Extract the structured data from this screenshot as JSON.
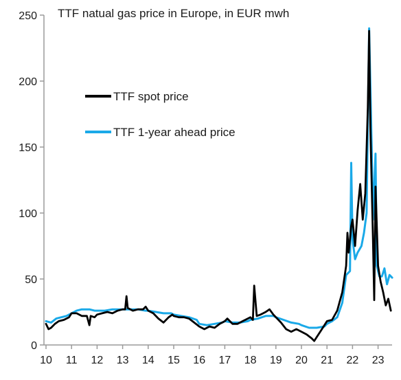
{
  "chart_data": {
    "type": "line",
    "title": "TTF natual gas price in Europe, in EUR mwh",
    "xlabel": "",
    "ylabel": "",
    "xlim": [
      2010,
      2023.8
    ],
    "ylim": [
      0,
      250
    ],
    "x_ticks": [
      "10",
      "11",
      "12",
      "13",
      "14",
      "15",
      "16",
      "17",
      "18",
      "19",
      "20",
      "21",
      "22",
      "23"
    ],
    "y_ticks": [
      "0",
      "50",
      "100",
      "150",
      "200",
      "250"
    ],
    "grid": false,
    "legend_position": "upper-left",
    "series": [
      {
        "name": "TTF spot price",
        "color": "#000000",
        "points": [
          [
            2010.0,
            16
          ],
          [
            2010.1,
            12
          ],
          [
            2010.2,
            13
          ],
          [
            2010.35,
            16
          ],
          [
            2010.5,
            18
          ],
          [
            2010.7,
            19
          ],
          [
            2010.9,
            21
          ],
          [
            2011.0,
            24
          ],
          [
            2011.2,
            24
          ],
          [
            2011.4,
            22
          ],
          [
            2011.6,
            22
          ],
          [
            2011.7,
            15
          ],
          [
            2011.75,
            22
          ],
          [
            2011.9,
            21
          ],
          [
            2012.0,
            23
          ],
          [
            2012.2,
            24
          ],
          [
            2012.4,
            25
          ],
          [
            2012.6,
            24
          ],
          [
            2012.8,
            26
          ],
          [
            2013.0,
            27
          ],
          [
            2013.1,
            27
          ],
          [
            2013.15,
            37
          ],
          [
            2013.2,
            28
          ],
          [
            2013.4,
            26
          ],
          [
            2013.6,
            27
          ],
          [
            2013.8,
            27
          ],
          [
            2013.9,
            29
          ],
          [
            2014.0,
            26
          ],
          [
            2014.2,
            24
          ],
          [
            2014.4,
            20
          ],
          [
            2014.6,
            17
          ],
          [
            2014.8,
            21
          ],
          [
            2014.95,
            23
          ],
          [
            2015.0,
            22
          ],
          [
            2015.2,
            21
          ],
          [
            2015.4,
            21
          ],
          [
            2015.6,
            20
          ],
          [
            2015.8,
            17
          ],
          [
            2016.0,
            14
          ],
          [
            2016.2,
            12
          ],
          [
            2016.4,
            14
          ],
          [
            2016.6,
            13
          ],
          [
            2016.8,
            16
          ],
          [
            2017.0,
            18
          ],
          [
            2017.1,
            20
          ],
          [
            2017.3,
            16
          ],
          [
            2017.5,
            16
          ],
          [
            2017.7,
            18
          ],
          [
            2017.9,
            20
          ],
          [
            2018.0,
            21
          ],
          [
            2018.1,
            19
          ],
          [
            2018.15,
            45
          ],
          [
            2018.25,
            22
          ],
          [
            2018.4,
            23
          ],
          [
            2018.6,
            25
          ],
          [
            2018.75,
            27
          ],
          [
            2018.9,
            23
          ],
          [
            2019.0,
            21
          ],
          [
            2019.2,
            17
          ],
          [
            2019.4,
            12
          ],
          [
            2019.6,
            10
          ],
          [
            2019.8,
            12
          ],
          [
            2020.0,
            10
          ],
          [
            2020.2,
            8
          ],
          [
            2020.4,
            5
          ],
          [
            2020.5,
            3
          ],
          [
            2020.6,
            6
          ],
          [
            2020.8,
            12
          ],
          [
            2021.0,
            18
          ],
          [
            2021.2,
            19
          ],
          [
            2021.4,
            26
          ],
          [
            2021.6,
            40
          ],
          [
            2021.75,
            60
          ],
          [
            2021.8,
            85
          ],
          [
            2021.85,
            70
          ],
          [
            2021.95,
            90
          ],
          [
            2022.0,
            95
          ],
          [
            2022.1,
            75
          ],
          [
            2022.2,
            102
          ],
          [
            2022.3,
            122
          ],
          [
            2022.4,
            95
          ],
          [
            2022.5,
            115
          ],
          [
            2022.6,
            180
          ],
          [
            2022.65,
            238
          ],
          [
            2022.7,
            165
          ],
          [
            2022.8,
            80
          ],
          [
            2022.85,
            34
          ],
          [
            2022.9,
            120
          ],
          [
            2023.0,
            60
          ],
          [
            2023.1,
            48
          ],
          [
            2023.2,
            40
          ],
          [
            2023.3,
            30
          ],
          [
            2023.4,
            35
          ],
          [
            2023.5,
            26
          ]
        ]
      },
      {
        "name": "TTF 1-year ahead price",
        "color": "#1aa9e8",
        "points": [
          [
            2010.0,
            18
          ],
          [
            2010.2,
            17
          ],
          [
            2010.4,
            20
          ],
          [
            2010.6,
            21
          ],
          [
            2010.8,
            22
          ],
          [
            2011.0,
            24
          ],
          [
            2011.2,
            26
          ],
          [
            2011.4,
            27
          ],
          [
            2011.7,
            27
          ],
          [
            2011.9,
            26
          ],
          [
            2012.0,
            26
          ],
          [
            2012.3,
            26
          ],
          [
            2012.6,
            27
          ],
          [
            2012.9,
            27
          ],
          [
            2013.0,
            27
          ],
          [
            2013.3,
            27
          ],
          [
            2013.6,
            27
          ],
          [
            2013.9,
            26
          ],
          [
            2014.0,
            26
          ],
          [
            2014.3,
            25
          ],
          [
            2014.6,
            24
          ],
          [
            2014.9,
            24
          ],
          [
            2015.0,
            23
          ],
          [
            2015.3,
            22
          ],
          [
            2015.6,
            21
          ],
          [
            2015.9,
            19
          ],
          [
            2016.0,
            16
          ],
          [
            2016.3,
            15
          ],
          [
            2016.6,
            16
          ],
          [
            2016.9,
            17
          ],
          [
            2017.0,
            18
          ],
          [
            2017.3,
            17
          ],
          [
            2017.6,
            17
          ],
          [
            2017.9,
            18
          ],
          [
            2018.0,
            19
          ],
          [
            2018.3,
            20
          ],
          [
            2018.6,
            22
          ],
          [
            2018.9,
            22
          ],
          [
            2019.0,
            21
          ],
          [
            2019.3,
            19
          ],
          [
            2019.6,
            17
          ],
          [
            2019.9,
            16
          ],
          [
            2020.0,
            15
          ],
          [
            2020.3,
            13
          ],
          [
            2020.6,
            13
          ],
          [
            2020.9,
            14
          ],
          [
            2021.0,
            16
          ],
          [
            2021.2,
            18
          ],
          [
            2021.4,
            21
          ],
          [
            2021.6,
            32
          ],
          [
            2021.75,
            53
          ],
          [
            2021.9,
            56
          ],
          [
            2021.95,
            138
          ],
          [
            2022.0,
            80
          ],
          [
            2022.1,
            65
          ],
          [
            2022.2,
            70
          ],
          [
            2022.35,
            75
          ],
          [
            2022.45,
            85
          ],
          [
            2022.55,
            100
          ],
          [
            2022.65,
            240
          ],
          [
            2022.75,
            150
          ],
          [
            2022.8,
            95
          ],
          [
            2022.9,
            145
          ],
          [
            2022.95,
            60
          ],
          [
            2023.05,
            52
          ],
          [
            2023.15,
            52
          ],
          [
            2023.25,
            58
          ],
          [
            2023.35,
            46
          ],
          [
            2023.45,
            53
          ],
          [
            2023.55,
            51
          ]
        ]
      }
    ]
  }
}
